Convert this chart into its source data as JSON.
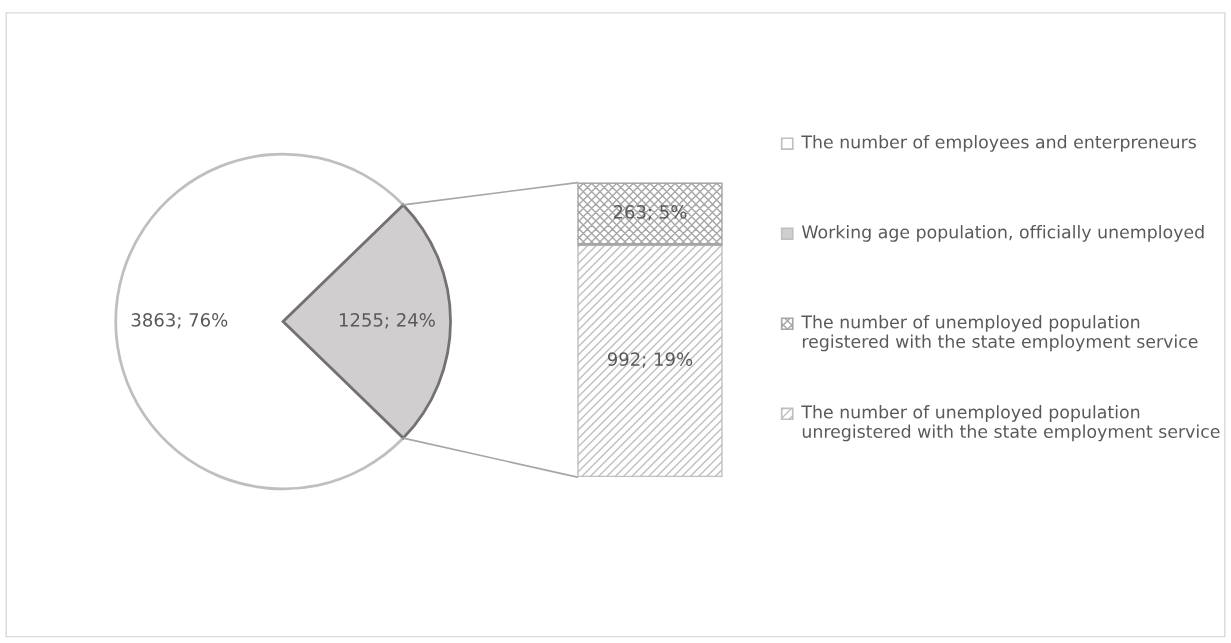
{
  "chart_data": [
    {
      "type": "pie",
      "categories": [
        "The number of employees and enterpreneurs",
        "Working age population, officially unemployed"
      ],
      "values": [
        3863,
        1255
      ],
      "colors": [
        "#ffffff",
        "#d0cecf"
      ],
      "value_labels": [
        "3863; 76%",
        "1255; 24%"
      ],
      "legend": "right"
    },
    {
      "type": "bar",
      "stacked": true,
      "categories": [
        null
      ],
      "series": [
        {
          "name": "The number of unemployed population unregistered with the state employment service",
          "color": "#bfbfbf",
          "values": [
            992
          ],
          "value_labels": [
            "992; 19%"
          ]
        },
        {
          "name": "The number of unemployed population registered with the state employment service",
          "color": "#a6a6a6",
          "values": [
            263
          ],
          "value_labels": [
            "263; 5%"
          ]
        }
      ],
      "legend": "right"
    }
  ]
}
